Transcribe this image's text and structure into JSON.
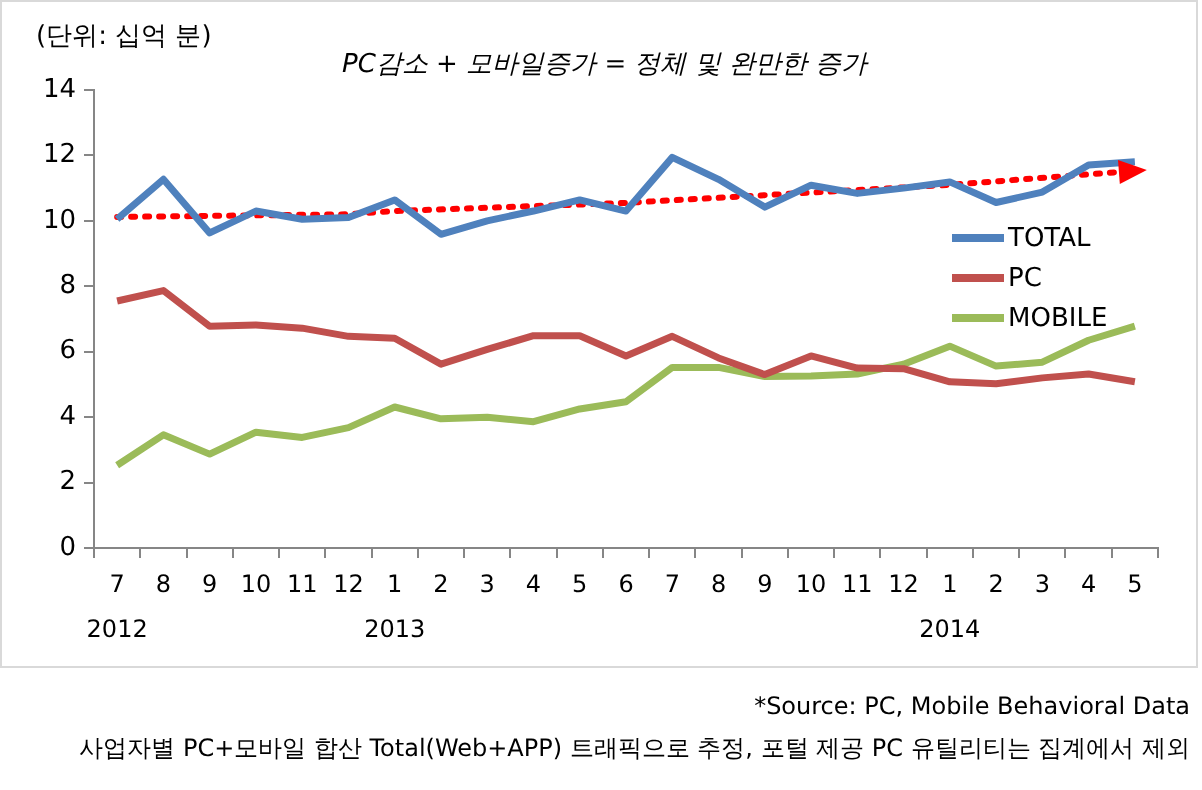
{
  "chart_data": {
    "type": "line",
    "ylabel": "(단위: 십억 분)",
    "categories": [
      "7\n2012",
      "8",
      "9",
      "10",
      "11",
      "12",
      "1\n2013",
      "2",
      "3",
      "4",
      "5",
      "6",
      "7",
      "8",
      "9",
      "10",
      "11",
      "12",
      "1\n2014",
      "2",
      "3",
      "4",
      "5"
    ],
    "series": [
      {
        "name": "TOTAL",
        "color": "#4f81bd",
        "values": [
          10.05,
          11.27,
          9.63,
          10.3,
          10.05,
          10.1,
          10.64,
          9.59,
          10.0,
          10.3,
          10.64,
          10.3,
          11.94,
          11.27,
          10.42,
          11.09,
          10.84,
          11.0,
          11.19,
          10.56,
          10.88,
          11.71,
          11.81
        ]
      },
      {
        "name": "PC",
        "color": "#c0504d",
        "values": [
          7.55,
          7.87,
          6.78,
          6.82,
          6.72,
          6.47,
          6.41,
          5.62,
          6.07,
          6.49,
          6.49,
          5.87,
          6.47,
          5.81,
          5.3,
          5.87,
          5.5,
          5.48,
          5.08,
          5.02,
          5.2,
          5.32,
          5.08
        ]
      },
      {
        "name": "MOBILE",
        "color": "#9bbb59",
        "values": [
          2.53,
          3.46,
          2.87,
          3.54,
          3.38,
          3.68,
          4.31,
          3.95,
          4.0,
          3.86,
          4.25,
          4.47,
          5.52,
          5.52,
          5.24,
          5.26,
          5.32,
          5.62,
          6.17,
          5.56,
          5.68,
          6.35,
          6.78
        ]
      },
      {
        "type": "line",
        "color": "#ff0000",
        "line_style": "dotted",
        "values": [
          10.12,
          null,
          null,
          null,
          null,
          10.2,
          10.3,
          null,
          null,
          null,
          null,
          10.55,
          null,
          null,
          null,
          null,
          null,
          null,
          11.1,
          null,
          null,
          null,
          11.53
        ]
      }
    ],
    "ylim": [
      0,
      14
    ],
    "yticks": [
      0,
      2,
      4,
      6,
      8,
      10,
      12,
      14
    ],
    "grid": false,
    "legend": "right",
    "marker": "none",
    "line_style": "solid",
    "annotations": [
      "PC감소 + 모바일증가 = 정체 및 완만한 증가",
      "*Source: PC, Mobile Behavioral Data",
      "사업자별 PC+모바일 합산 Total(Web+APP) 트래픽으로 추정, 포털 제공 PC 유틸리티는 집계에서 제외"
    ]
  }
}
